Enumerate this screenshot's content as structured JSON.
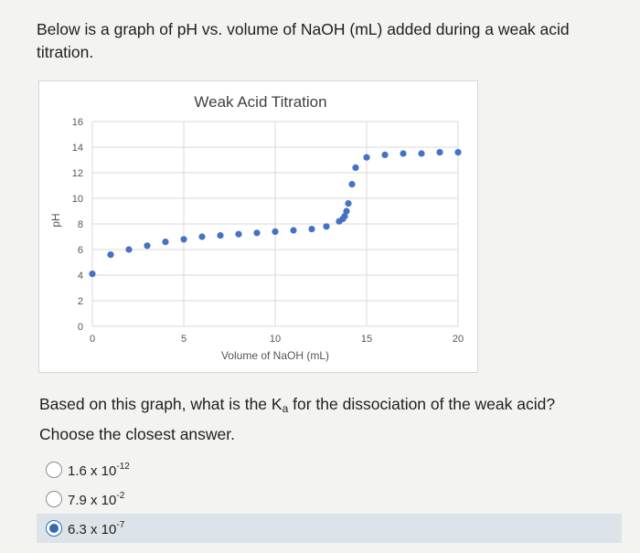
{
  "intro": {
    "text": "Below is a graph of pH vs. volume of NaOH (mL) added during a weak acid titration."
  },
  "question": {
    "before": "Based on this graph, what is the K",
    "sub": "a",
    "after": " for the dissociation of the weak acid? Choose the closest answer."
  },
  "options": [
    {
      "mantissa": "1.6 x 10",
      "exponent": "-12",
      "selected": false
    },
    {
      "mantissa": "7.9 x 10",
      "exponent": "-2",
      "selected": false
    },
    {
      "mantissa": "6.3 x 10",
      "exponent": "-7",
      "selected": true
    }
  ],
  "colors": {
    "point": "#4472c4",
    "grid": "#d9d9d9",
    "selected_row": "#dde4e9",
    "radio_selected": "#2d6cb5"
  },
  "chart_data": {
    "type": "scatter",
    "title": "Weak Acid Titration",
    "xlabel": "Volume of NaOH (mL)",
    "ylabel": "pH",
    "xlim": [
      0,
      20
    ],
    "ylim": [
      0,
      16
    ],
    "xticks": [
      "0",
      "5",
      "10",
      "15",
      "20"
    ],
    "yticks": [
      "0",
      "2",
      "4",
      "6",
      "8",
      "10",
      "12",
      "14",
      "16"
    ],
    "grid": true,
    "x": [
      0,
      1,
      2,
      3,
      4,
      5,
      6,
      7,
      8,
      9,
      10,
      11,
      12,
      12.8,
      13.5,
      13.7,
      13.8,
      13.9,
      14.0,
      14.2,
      14.4,
      15,
      16,
      17,
      18,
      19,
      20
    ],
    "y": [
      4.1,
      5.6,
      6.0,
      6.3,
      6.6,
      6.8,
      7.0,
      7.1,
      7.2,
      7.3,
      7.4,
      7.5,
      7.6,
      7.8,
      8.2,
      8.4,
      8.6,
      9.0,
      9.6,
      11.1,
      12.4,
      13.2,
      13.4,
      13.5,
      13.5,
      13.6,
      13.6
    ]
  }
}
